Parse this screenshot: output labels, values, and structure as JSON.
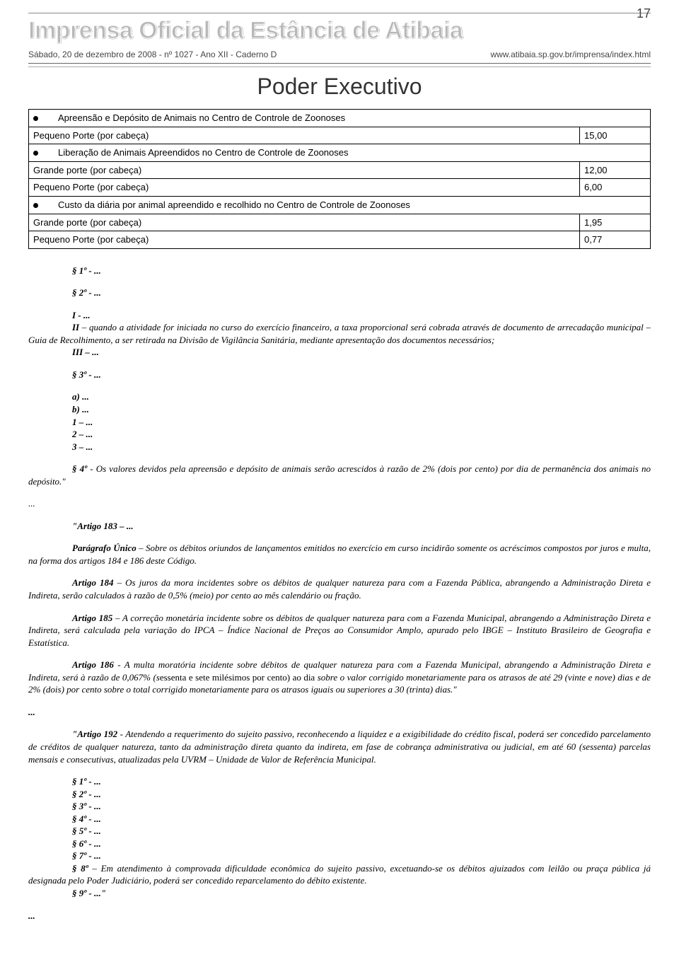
{
  "header": {
    "masthead": "Imprensa Oficial da Estância de Atibaia",
    "page_num": "17",
    "dateline": "Sábado, 20 de dezembro de 2008 - nº 1027 - Ano XII - Caderno D",
    "url": "www.atibaia.sp.gov.br/imprensa/index.html",
    "main_title": "Poder Executivo"
  },
  "fees_table": {
    "rows": [
      {
        "bullet": true,
        "label": "Apreensão e Depósito de Animais no Centro de Controle de Zoonoses",
        "value": ""
      },
      {
        "bullet": false,
        "label": "Pequeno Porte (por cabeça)",
        "value": "15,00"
      },
      {
        "bullet": true,
        "label": "Liberação de Animais Apreendidos no Centro de Controle de Zoonoses",
        "value": ""
      },
      {
        "bullet": false,
        "label": "Grande porte (por cabeça)",
        "value": "12,00"
      },
      {
        "bullet": false,
        "label": "Pequeno Porte (por cabeça)",
        "value": "6,00"
      },
      {
        "bullet": true,
        "label": "Custo da diária por animal apreendido e recolhido no Centro de Controle de Zoonoses",
        "value": ""
      },
      {
        "bullet": false,
        "label": "Grande porte (por cabeça)",
        "value": "1,95"
      },
      {
        "bullet": false,
        "label": "Pequeno Porte (por cabeça)",
        "value": "0,77"
      }
    ]
  },
  "body": {
    "p1": "§ 1º - ...",
    "p2": "§ 2º - ...",
    "p3": "I - ...",
    "p4": "II – quando a atividade for iniciada no curso do exercício financeiro, a taxa proporcional será cobrada através de documento de arrecadação municipal – Guia de Recolhimento, a ser retirada na Divisão de Vigilância Sanitária, mediante apresentação dos documentos necessários;",
    "p5": "III – ...",
    "p6": "§ 3º - ...",
    "p7a": "a) ...",
    "p7b": "b) ...",
    "p7c": "1 – ...",
    "p7d": "2 – ...",
    "p7e": "3 – ...",
    "p8": "§ 4º - Os valores devidos pela apreensão e depósito de animais serão acrescidos à razão de 2% (dois por cento) por dia de permanência dos animais no depósito.\"",
    "ell1": "...",
    "art183_label": "\"Artigo 183 – ...",
    "art183_pu_bold": "Parágrafo Único",
    "art183_pu_rest": " – Sobre os débitos oriundos de lançamentos emitidos no exercício em curso incidirão somente os acréscimos compostos por juros e multa, na forma dos artigos 184 e 186 deste Código.",
    "art184_bold": "Artigo 184",
    "art184_rest": " – Os juros da mora incidentes sobre os débitos de qualquer natureza para com a Fazenda Pública, abrangendo a Administração Direta e Indireta, serão calculados à razão de 0,5% (meio) por cento ao mês calendário ou fração.",
    "art185_bold": "Artigo 185",
    "art185_rest": " – A correção monetária incidente sobre os débitos de qualquer natureza para com a Fazenda Municipal, abrangendo a Administração Direta e Indireta, será calculada pela variação do IPCA – Índice Nacional de Preços ao Consumidor Amplo, apurado pelo IBGE – Instituto Brasileiro de Geografia e Estatística.",
    "art186_bold": "Artigo 186",
    "art186_mid1": " - A multa  moratória  incidente  sobre  débitos de qualquer natureza para com a Fazenda Municipal, abrangendo a Administração Direta e Indireta, será à razão de 0,067% (s",
    "art186_upright": "essenta e sete milésimos por cento) ao dia",
    "art186_mid2": " sobre o valor corrigido monetariamente para os atrasos de até 29 (vinte e nove) dias e de 2% (dois) por cento sobre o total corrigido monetariamente para os atrasos iguais ou superiores a 30 (trinta) dias.\"",
    "ell2_bold": "...",
    "art192_bold": "\"Artigo 192",
    "art192_rest": " - Atendendo a requerimento do sujeito passivo, reconhecendo a liquidez e a exigibilidade do crédito fiscal, poderá ser concedido parcelamento de créditos de qualquer natureza, tanto da administração direta quanto da indireta, em fase de cobrança administrativa ou judicial, em até 60 (sessenta) parcelas mensais e consecutivas, atualizadas pela UVRM – Unidade de Valor de Referência Municipal.",
    "s1": "§ 1º - ...",
    "s2": "§ 2º - ...",
    "s3": "§ 3º - ...",
    "s4": "§ 4º - ...",
    "s5": "§ 5º - ...",
    "s6": "§ 6º - ...",
    "s7": "§ 7º - ...",
    "s8": "§ 8º – Em atendimento à comprovada dificuldade econômica do sujeito passivo, excetuando-se os débitos ajuizados com leilão ou praça pública já designada pelo Poder Judiciário, poderá ser concedido reparcelamento do débito existente.",
    "s9": "§ 9º - ...\"",
    "ell3_bold": "..."
  }
}
